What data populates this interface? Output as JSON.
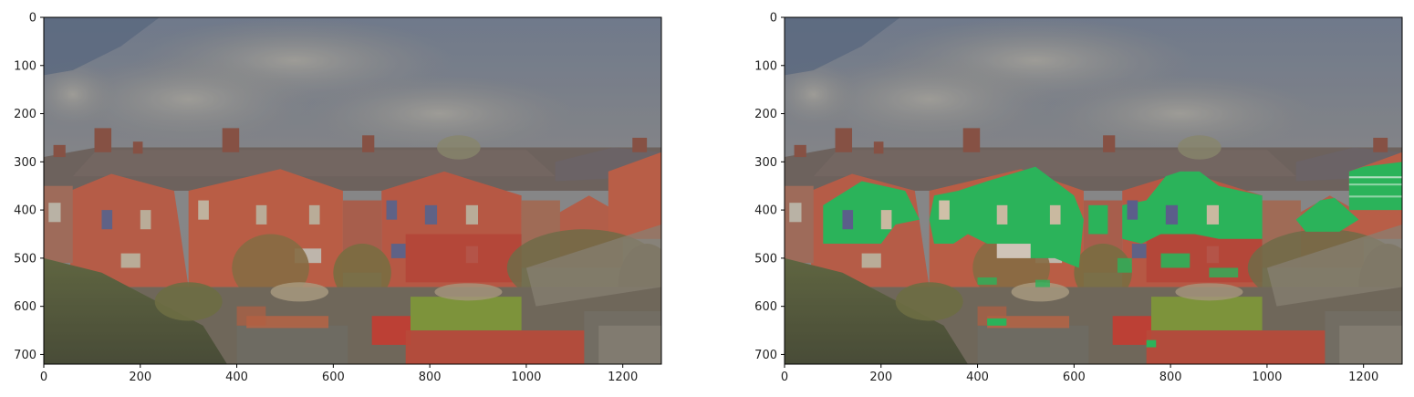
{
  "chart_data": [
    {
      "type": "image",
      "description_kind": "photo-panel",
      "xlim": [
        0,
        1280
      ],
      "ylim": [
        720,
        0
      ],
      "xticks": [
        0,
        200,
        400,
        600,
        800,
        1000,
        1200
      ],
      "yticks": [
        0,
        100,
        200,
        300,
        400,
        500,
        600,
        700
      ],
      "overlay": "none"
    },
    {
      "type": "image",
      "description_kind": "photo-panel-with-mask",
      "xlim": [
        0,
        1280
      ],
      "ylim": [
        720,
        0
      ],
      "xticks": [
        0,
        200,
        400,
        600,
        800,
        1000,
        1200
      ],
      "yticks": [
        0,
        100,
        200,
        300,
        400,
        500,
        600,
        700
      ],
      "overlay": "green segmentation mask",
      "mask_color": "#2bb35a"
    }
  ],
  "colors": {
    "sky": "#7b7f8c",
    "cloud": "#9a9a96",
    "roof": "#6e5e57",
    "brick": "#c9553a",
    "foliage": "#5c6532",
    "ground": "#4d5130",
    "lawn": "#7f9a2f",
    "red_patch": "#cf3a26",
    "mask": "#2bb35a"
  }
}
